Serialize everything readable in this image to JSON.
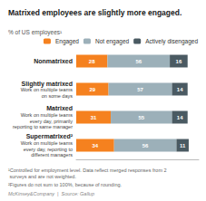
{
  "chart_data": {
    "type": "bar",
    "orientation": "horizontal",
    "stacked": true,
    "data_labels": true,
    "grid": false,
    "tick_labels": false,
    "legend": "upper right",
    "title": "Matrixed employees are slightly more engaged.",
    "subtitle": "% of US employees¹",
    "categories": [
      "Nonmatrixed",
      "Slightly matrixed\nWork on multiple teams\non some days",
      "Matrixed\nWork on multiple teams\nevery day, primarily\nreporting to same manager",
      "Supermatrixed²\nWork on multiple teams\nevery day, reporting to\ndifferent managers"
    ],
    "series": [
      {
        "name": "Engaged",
        "color": "#f5811f",
        "values": [
          28,
          29,
          31,
          34
        ]
      },
      {
        "name": "Not engaged",
        "color": "#9cb0b9",
        "values": [
          56,
          57,
          55,
          56
        ]
      },
      {
        "name": "Actively disengaged",
        "color": "#4a5a62",
        "values": [
          16,
          14,
          14,
          11
        ]
      }
    ],
    "xlim": [
      0,
      110
    ],
    "annotations": [
      "¹Controlled for employment level. Data reflect merged responses from 2 surveys and are not weighted.",
      "²Figures do not sum to 100%, because of rounding.",
      "McKinsey&Company  |  Source: Gallup"
    ]
  }
}
